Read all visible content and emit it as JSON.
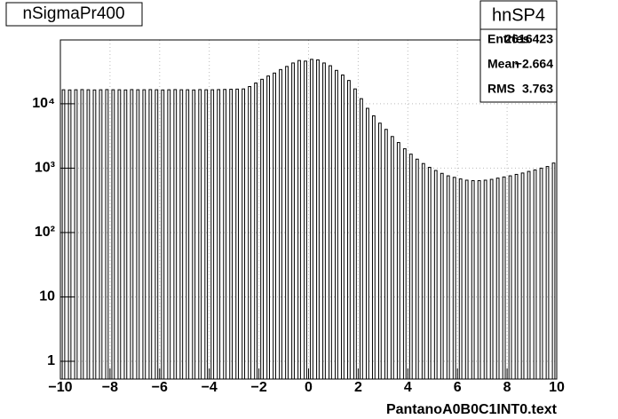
{
  "chart_data": {
    "type": "histogram",
    "title": "nSigmaPr400",
    "x_label": "PantanoA0B0C1INT0.text",
    "log_y": true,
    "grid": true,
    "color": "#000000",
    "bins": [
      -10,
      -9.75,
      -9.5,
      -9.25,
      -9,
      -8.75,
      -8.5,
      -8.25,
      -8,
      -7.75,
      -7.5,
      -7.25,
      -7,
      -6.75,
      -6.5,
      -6.25,
      -6,
      -5.75,
      -5.5,
      -5.25,
      -5,
      -4.75,
      -4.5,
      -4.25,
      -4,
      -3.75,
      -3.5,
      -3.25,
      -3,
      -2.75,
      -2.5,
      -2.25,
      -2,
      -1.75,
      -1.5,
      -1.25,
      -1,
      -0.75,
      -0.5,
      -0.25,
      0,
      0.25,
      0.5,
      0.75,
      1,
      1.25,
      1.5,
      1.75,
      2,
      2.25,
      2.5,
      2.75,
      3,
      3.25,
      3.5,
      3.75,
      4,
      4.25,
      4.5,
      4.75,
      5,
      5.25,
      5.5,
      5.75,
      6,
      6.25,
      6.5,
      6.75,
      7,
      7.25,
      7.5,
      7.75,
      8,
      8.25,
      8.5,
      8.75,
      9,
      9.25,
      9.5,
      9.75,
      10
    ],
    "values": [
      16500,
      16400,
      16500,
      16600,
      16500,
      16400,
      16500,
      16600,
      16500,
      16500,
      16400,
      16600,
      16500,
      16500,
      16600,
      16500,
      16400,
      16500,
      16600,
      16500,
      16500,
      16400,
      16600,
      16500,
      16500,
      16600,
      16700,
      16800,
      16900,
      17000,
      18500,
      21000,
      24000,
      27000,
      30000,
      34000,
      38000,
      43000,
      47000,
      46000,
      49000,
      48000,
      43000,
      39000,
      33000,
      28000,
      23000,
      17000,
      12000,
      8500,
      6500,
      5000,
      4000,
      3100,
      2500,
      2000,
      1650,
      1380,
      1180,
      1030,
      920,
      830,
      760,
      720,
      680,
      650,
      640,
      640,
      650,
      670,
      700,
      730,
      760,
      800,
      840,
      890,
      940,
      1000,
      1060,
      1200
    ],
    "xlim": [
      -10,
      10
    ],
    "xticks": [
      {
        "value": -10,
        "label": "−10"
      },
      {
        "value": -8,
        "label": "−8"
      },
      {
        "value": -6,
        "label": "−6"
      },
      {
        "value": -4,
        "label": "−4"
      },
      {
        "value": -2,
        "label": "−2"
      },
      0,
      2,
      4,
      6,
      8,
      10
    ],
    "ylim": [
      0.53,
      98000
    ],
    "yticks": [
      1,
      10,
      {
        "value": 100,
        "label": "10²"
      },
      {
        "value": 1000,
        "label": "10³"
      },
      {
        "value": 10000,
        "label": "10⁴"
      }
    ],
    "stats": {
      "title": "hnSP4",
      "rows": [
        [
          "Entries",
          "2616423"
        ],
        [
          "Mean",
          "−2.664"
        ],
        [
          "RMS",
          "3.763"
        ]
      ]
    }
  }
}
